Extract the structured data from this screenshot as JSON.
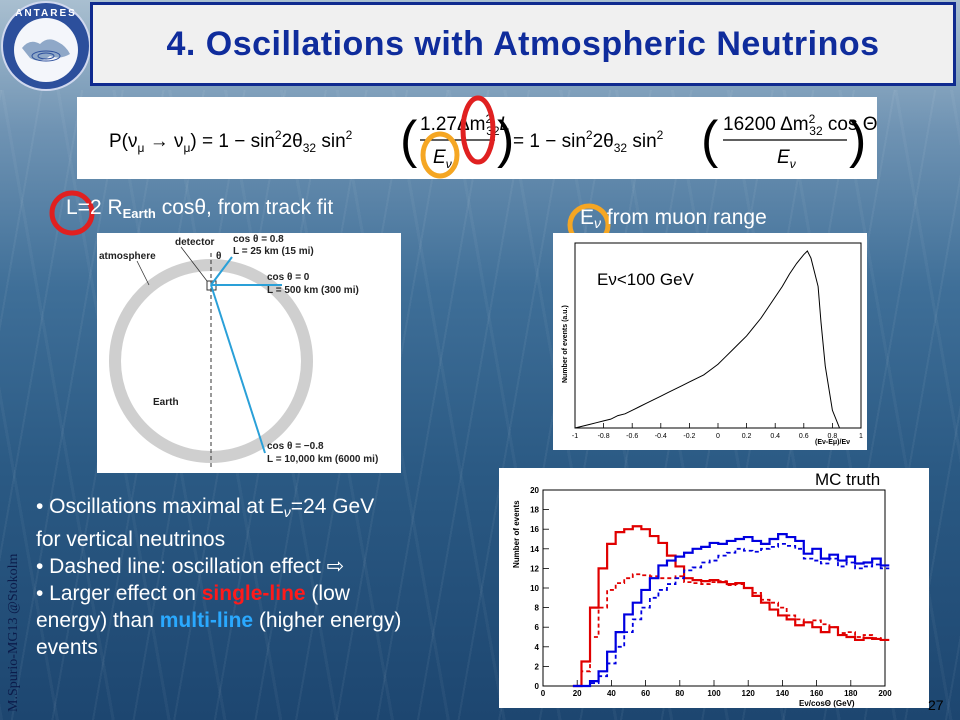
{
  "header": {
    "title": "4. Oscillations with Atmospheric Neutrinos",
    "logo_text": "ANTARES"
  },
  "formula": {
    "lhs": "P(ν",
    "lhs_mu": "μ",
    "arrow": " → ν",
    "lhs_mu2": "μ",
    "lhs_end": ") = 1 − sin",
    "sq": "2",
    "two_theta": "2θ",
    "th_sub": "32",
    "sin2": " sin",
    "num1": "1.27Δm",
    "num1_sup": "2",
    "num1_sub": "32",
    "num1_L": "L",
    "den1": "E",
    "den_sub": "ν",
    "mid": "= 1 − sin",
    "num2": "16200 Δm",
    "num2_tail": " cos Θ",
    "den2": "E"
  },
  "labels": {
    "l_prefix": "L=2 R",
    "l_sub": "Earth",
    "l_suffix": " cosθ,  from track fit",
    "e_prefix": "E",
    "e_sub": "ν",
    "e_suffix": " from muon range",
    "mc_truth": "MC truth"
  },
  "earth_diagram": {
    "detector": "detector",
    "atmosphere": "atmosphere",
    "earth": "Earth",
    "c1": "cos θ = 0.8",
    "c1_l": "L = 25 km (15 mi)",
    "theta": "θ",
    "c2": "cos θ = 0",
    "c2_l": "L = 500 km (300 mi)",
    "c3": "cos θ = −0.8",
    "c3_l": "L = 10,000 km (6000 mi)"
  },
  "chart_data": [
    {
      "type": "line",
      "annotation": "Eν<100 GeV",
      "ylabel": "Number of events (a.u.)",
      "xlabel": "(Eν-Eμ)/Eν",
      "xlim": [
        -1,
        1
      ],
      "x_ticks": [
        "-1",
        "-0.8",
        "-0.6",
        "-0.4",
        "-0.2",
        "0",
        "0.2",
        "0.4",
        "0.6",
        "0.8",
        "1"
      ],
      "x": [
        -0.95,
        -0.9,
        -0.85,
        -0.8,
        -0.75,
        -0.7,
        -0.65,
        -0.6,
        -0.55,
        -0.5,
        -0.45,
        -0.4,
        -0.35,
        -0.3,
        -0.25,
        -0.2,
        -0.15,
        -0.1,
        -0.05,
        0,
        0.05,
        0.1,
        0.15,
        0.2,
        0.25,
        0.3,
        0.35,
        0.4,
        0.45,
        0.5,
        0.55,
        0.6,
        0.625,
        0.65,
        0.7,
        0.72,
        0.75,
        0.8,
        0.85
      ],
      "values": [
        0.01,
        0.02,
        0.03,
        0.04,
        0.05,
        0.07,
        0.08,
        0.1,
        0.12,
        0.14,
        0.16,
        0.18,
        0.2,
        0.22,
        0.24,
        0.26,
        0.28,
        0.3,
        0.33,
        0.36,
        0.4,
        0.44,
        0.48,
        0.52,
        0.57,
        0.62,
        0.68,
        0.74,
        0.8,
        0.87,
        0.93,
        0.98,
        1.0,
        0.96,
        0.8,
        0.6,
        0.35,
        0.1,
        0.0
      ]
    },
    {
      "type": "line",
      "ylabel": "Number of events",
      "xlabel": "Eν/cosΘ (GeV)",
      "xlim": [
        0,
        200
      ],
      "ylim": [
        0,
        20
      ],
      "x_ticks": [
        "0",
        "20",
        "40",
        "60",
        "80",
        "100",
        "120",
        "140",
        "160",
        "180",
        "200"
      ],
      "y_ticks": [
        "0",
        "2",
        "4",
        "6",
        "8",
        "10",
        "12",
        "14",
        "16",
        "18",
        "20"
      ],
      "x": [
        20,
        25,
        30,
        35,
        40,
        45,
        50,
        55,
        60,
        65,
        70,
        75,
        80,
        85,
        90,
        95,
        100,
        105,
        110,
        115,
        120,
        125,
        130,
        135,
        140,
        145,
        150,
        155,
        160,
        165,
        170,
        175,
        180,
        185,
        190,
        195,
        200
      ],
      "series": [
        {
          "color": "#e00000",
          "style": "solid",
          "values": [
            0,
            2.5,
            8,
            12,
            14.5,
            15.7,
            16,
            16.3,
            16,
            15.3,
            14.6,
            13.3,
            12.2,
            11,
            10.8,
            10.7,
            10.8,
            10.6,
            10.4,
            10.5,
            10,
            9.2,
            8.5,
            7.8,
            7.2,
            6.8,
            6.2,
            6.5,
            6,
            5.5,
            6,
            5.2,
            5,
            4.7,
            4.9,
            4.8,
            4.7
          ]
        },
        {
          "color": "#e00000",
          "style": "dashed",
          "values": [
            0,
            1.5,
            5,
            8,
            9.8,
            10.5,
            11,
            11.4,
            11.3,
            11.2,
            11,
            11,
            11.2,
            10.6,
            10.5,
            10.4,
            10.6,
            10.7,
            10.3,
            10.4,
            10,
            9.5,
            8.8,
            8.5,
            8,
            7.2,
            6.8,
            6.5,
            6.7,
            6.3,
            6,
            5.4,
            5.5,
            5,
            5.2,
            4.9,
            4.7
          ]
        },
        {
          "color": "#0000e0",
          "style": "solid",
          "values": [
            0,
            0,
            0.5,
            1.5,
            3.5,
            5.5,
            7.3,
            8.5,
            9.8,
            11,
            12.3,
            12.8,
            13.2,
            13.6,
            14,
            14.2,
            14.6,
            14.5,
            14.8,
            15,
            15.2,
            14.8,
            14.5,
            15,
            15.5,
            15.2,
            14.8,
            13.5,
            14,
            13,
            13.4,
            12.8,
            13.2,
            12.5,
            12.6,
            13,
            12.3
          ]
        },
        {
          "color": "#0000e0",
          "style": "dashed",
          "values": [
            0,
            0,
            0.3,
            1,
            2.3,
            4,
            5.5,
            6.8,
            8,
            9,
            9.8,
            10.4,
            11,
            11.8,
            12.1,
            12.6,
            12.8,
            13.3,
            13.6,
            14,
            13.8,
            13.7,
            14,
            14.2,
            14.5,
            14.3,
            14,
            13,
            12.8,
            12.5,
            13,
            12.2,
            12.6,
            12,
            12.2,
            12.4,
            12
          ]
        }
      ]
    }
  ],
  "bullets": {
    "b1_prefix": "• Oscillations maximal at E",
    "b1_sub": "ν",
    "b1_suffix": "=24 GeV",
    "b1_line2": "for vertical  neutrinos",
    "b2": "• Dashed line: oscillation effect ⇨",
    "b3_prefix": "• Larger effect on ",
    "b3_red": "single-line",
    "b3_mid": " (low",
    "b3_line2a": "energy) than ",
    "b3_cyan": "multi-line",
    "b3_line2b": " (higher energy)",
    "b3_line3": "events"
  },
  "footer": {
    "author": "M.Spurio-MG13 @Stokolm",
    "page": "27"
  },
  "colors": {
    "title_blue": "#0f2c9c",
    "highlight_red": "#e02020",
    "highlight_orange": "#f5a623"
  }
}
